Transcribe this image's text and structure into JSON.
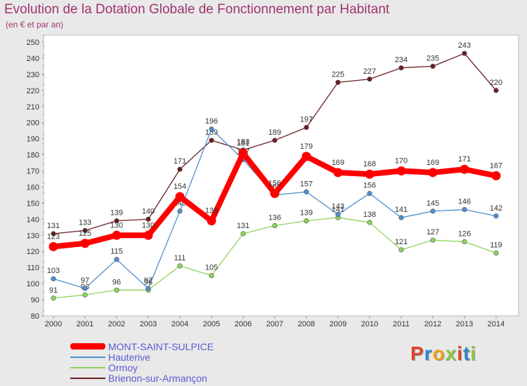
{
  "header": {
    "title": "Evolution de la Dotation Globale de Fonctionnement par Habitant",
    "subtitle": "(en € et par an)"
  },
  "chart_data": {
    "type": "line",
    "title": "Evolution de la Dotation Globale de Fonctionnement par Habitant",
    "subtitle": "(en € et par an)",
    "xlabel": "",
    "ylabel": "",
    "x": [
      "2000",
      "2001",
      "2002",
      "2003",
      "2004",
      "2005",
      "2006",
      "2007",
      "2008",
      "2009",
      "2010",
      "2011",
      "2012",
      "2013",
      "2014"
    ],
    "ylim": [
      80,
      250
    ],
    "yticks": [
      80,
      90,
      100,
      110,
      120,
      130,
      140,
      150,
      160,
      170,
      180,
      190,
      200,
      210,
      220,
      230,
      240,
      250
    ],
    "grid": false,
    "legend_position": "bottom-left",
    "series": [
      {
        "name": "Brienon-sur-Armançon",
        "color": "#6b1e22",
        "values": [
          131,
          133,
          139,
          140,
          171,
          189,
          183,
          189,
          197,
          225,
          227,
          234,
          235,
          243,
          220
        ],
        "labels": [
          "131",
          "133",
          "139",
          "140",
          "171",
          "189",
          "183",
          "189",
          "197",
          "225",
          "227",
          "234",
          "235",
          "243",
          "220"
        ]
      },
      {
        "name": "Ormoy",
        "color": "#8ed45a",
        "values": [
          91,
          93,
          96,
          96,
          111,
          105,
          131,
          136,
          139,
          141,
          138,
          121,
          127,
          126,
          119
        ],
        "labels": [
          "91",
          "93",
          "96",
          "96",
          "111",
          "105",
          "131",
          "136",
          "139",
          "141",
          "138",
          "121",
          "127",
          "126",
          "119"
        ]
      },
      {
        "name": "Hauterive",
        "color": "#4f8fcf",
        "values": [
          103,
          97,
          115,
          97,
          145,
          196,
          177,
          155,
          157,
          143,
          156,
          141,
          145,
          146,
          142
        ],
        "labels": [
          "103",
          "97",
          "115",
          "97",
          "145",
          "196",
          "177",
          "155",
          "157",
          "143",
          "156",
          "141",
          "145",
          "146",
          "142"
        ]
      },
      {
        "name": "MONT-SAINT-SULPICE",
        "color": "#ff0000",
        "values": [
          123,
          125,
          130,
          130,
          154,
          139,
          181,
          156,
          179,
          169,
          168,
          170,
          169,
          171,
          167
        ],
        "labels": [
          "123",
          "125",
          "130",
          "130",
          "154",
          "139",
          "181",
          "156",
          "179",
          "169",
          "168",
          "170",
          "169",
          "171",
          "167"
        ]
      }
    ]
  },
  "legend": {
    "items": [
      {
        "label": "MONT-SAINT-SULPICE",
        "color": "#ff0000"
      },
      {
        "label": "Hauterive",
        "color": "#4f8fcf"
      },
      {
        "label": "Ormoy",
        "color": "#8ed45a"
      },
      {
        "label": "Brienon-sur-Armançon",
        "color": "#6b1e22"
      }
    ]
  },
  "logo": {
    "text": "Proxiti",
    "colors": [
      "#e0432b",
      "#2f86c9",
      "#f0a11a",
      "#8bc540",
      "#e0432b",
      "#2f86c9",
      "#8bc540"
    ]
  }
}
